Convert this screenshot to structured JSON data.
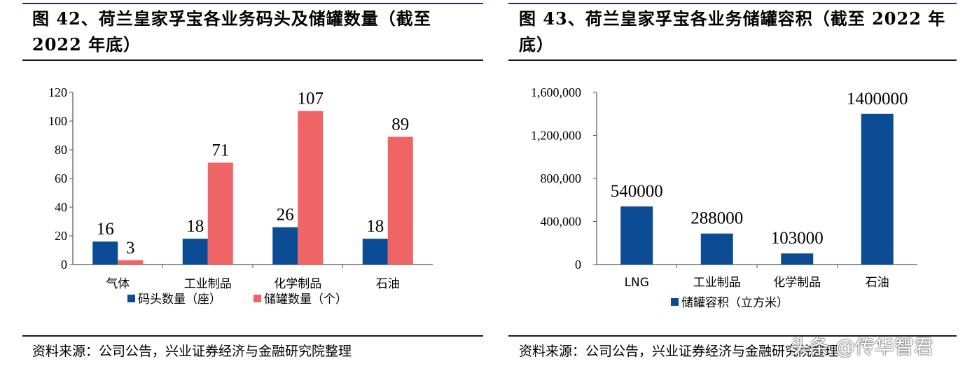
{
  "left": {
    "title_line1": "图 42、荷兰皇家孚宝各业务码头及储罐数量（截至",
    "title_line2": "2022 年底）",
    "source": "资料来源：公司公告，兴业证券经济与金融研究院整理"
  },
  "right": {
    "title_line1": "图 43、荷兰皇家孚宝各业务储罐容积（截至 2022 年",
    "title_line2": "底）",
    "source": "资料来源：公司公告，兴业证券经济与金融研究院整理"
  },
  "watermark": "头条 @传华智君",
  "colors": {
    "navy": "#0b4c95",
    "salmon": "#ef6464"
  },
  "chart_data": [
    {
      "type": "bar",
      "categories": [
        "气体",
        "工业制品",
        "化学制品",
        "石油"
      ],
      "series": [
        {
          "name": "码头数量（座）",
          "values": [
            16,
            18,
            26,
            18
          ],
          "color": "#0b4c95"
        },
        {
          "name": "储罐数量（个）",
          "values": [
            3,
            71,
            107,
            89
          ],
          "color": "#ef6464"
        }
      ],
      "yticks": [
        "0",
        "20",
        "40",
        "60",
        "80",
        "100",
        "120"
      ],
      "ylim": [
        0,
        120
      ],
      "legend": "bottom",
      "grid": false
    },
    {
      "type": "bar",
      "categories": [
        "LNG",
        "工业制品",
        "化学制品",
        "石油"
      ],
      "series": [
        {
          "name": "储罐容积（立方米）",
          "values": [
            540000,
            288000,
            103000,
            1400000
          ],
          "color": "#0b4c95"
        }
      ],
      "yticks": [
        "0",
        "400,000",
        "800,000",
        "1,200,000",
        "1,600,000"
      ],
      "ylim": [
        0,
        1600000
      ],
      "legend": "bottom",
      "grid": false
    }
  ]
}
